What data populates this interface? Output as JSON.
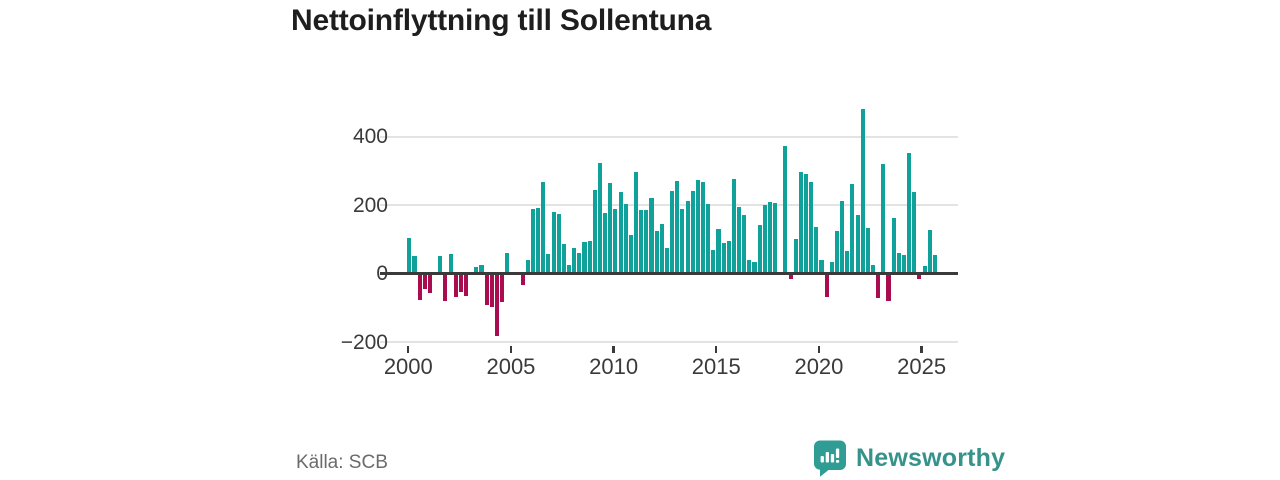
{
  "title": "Nettoinflyttning till Sollentuna",
  "source": "Källa: SCB",
  "logo": {
    "text": "Newsworthy",
    "icon": "newsworthy-bar-chart-speech-bubble-icon",
    "icon_color": "#2f9d94",
    "text_color": "#35938b"
  },
  "colors": {
    "positive_bar": "#10a19b",
    "negative_bar": "#aa0c50",
    "zero_axis_line": "#3a3a3a",
    "gridline": "#e3e3e3",
    "tick_text": "#3a3a3a",
    "title_text": "#1e1e1e",
    "source_text": "#6b6b6b",
    "background": "#ffffff"
  },
  "chart_data": {
    "type": "bar",
    "title": "Nettoinflyttning till Sollentuna",
    "frequency": "quarterly",
    "x_start": "2000 Q1",
    "x_end": "2025 Q3",
    "x_tick_labels": [
      "2000",
      "2005",
      "2010",
      "2015",
      "2020",
      "2025"
    ],
    "y_ticks": [
      400,
      200,
      0,
      -200
    ],
    "y_tick_labels": [
      "400",
      "200",
      "0",
      "−200"
    ],
    "ylim": [
      -220,
      500
    ],
    "grid": "horizontal",
    "legend": "none",
    "xlabel": "",
    "ylabel": "",
    "values": [
      105,
      50,
      -78,
      -44,
      -58,
      0,
      51,
      -80,
      58,
      -68,
      -53,
      -65,
      0,
      19,
      24,
      -92,
      -97,
      -182,
      -82,
      60,
      0,
      0,
      -34,
      39,
      188,
      190,
      268,
      56,
      179,
      174,
      85,
      25,
      73,
      60,
      92,
      95,
      244,
      324,
      176,
      263,
      188,
      239,
      203,
      111,
      295,
      186,
      184,
      220,
      123,
      145,
      73,
      242,
      269,
      189,
      213,
      240,
      273,
      266,
      203,
      68,
      131,
      89,
      95,
      276,
      195,
      172,
      39,
      34,
      142,
      200,
      210,
      205,
      0,
      372,
      -16,
      102,
      295,
      290,
      268,
      137,
      39,
      -68,
      34,
      123,
      213,
      65,
      261,
      171,
      481,
      132,
      26,
      -71,
      319,
      -80,
      161,
      61,
      55,
      353,
      237,
      -16,
      22,
      126,
      55
    ]
  }
}
